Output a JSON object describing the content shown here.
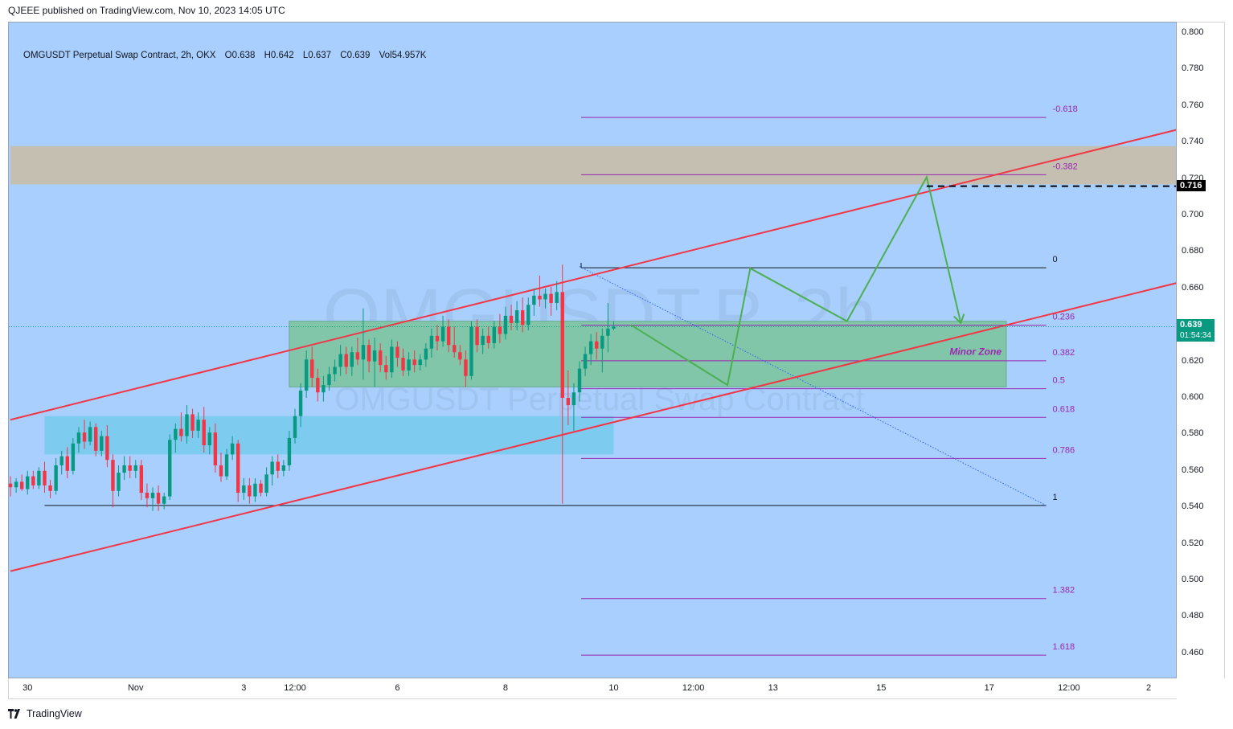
{
  "publish_line": "QJEEE published on TradingView.com, Nov 10, 2023 14:05 UTC",
  "legend": {
    "symbol": "OMGUSDT Perpetual Swap Contract, 2h, OKX",
    "open": "O0.638",
    "high": "H0.642",
    "low": "L0.637",
    "close": "C0.639",
    "volume": "Vol54.957K"
  },
  "watermark": {
    "big": "OMGUSDT.P, 2h",
    "small": "OMGUSDT Perpetual Swap Contract"
  },
  "footer": {
    "brand": "TradingView"
  },
  "colors": {
    "background": "#a8cffd",
    "channel_line": "#f23645",
    "projection_path": "#4caf50",
    "fib_line": "#9c27b0",
    "resistance_zone": "#c4bfb0",
    "support_zone_green": "#81c6a9",
    "support_zone_blue": "#7ecbf0",
    "up_candle": "#089981",
    "down_candle": "#f23645"
  },
  "chart_data": {
    "type": "candlestick",
    "symbol": "OMGUSDT Perpetual Swap Contract",
    "interval": "2h",
    "exchange": "OKX",
    "ylim": [
      0.452,
      0.806
    ],
    "y_ticks": [
      "0.800",
      "0.780",
      "0.760",
      "0.740",
      "0.720",
      "0.700",
      "0.680",
      "0.660",
      "0.640",
      "0.620",
      "0.600",
      "0.580",
      "0.560",
      "0.540",
      "0.520",
      "0.500",
      "0.480",
      "0.460"
    ],
    "x_ticks": [
      {
        "label": "30",
        "bar": 3
      },
      {
        "label": "Nov",
        "bar": 22
      },
      {
        "label": "3",
        "bar": 41
      },
      {
        "label": "12:00",
        "bar": 50
      },
      {
        "label": "6",
        "bar": 68
      },
      {
        "label": "8",
        "bar": 87
      },
      {
        "label": "10",
        "bar": 106
      },
      {
        "label": "12:00",
        "bar": 120
      },
      {
        "label": "13",
        "bar": 134
      },
      {
        "label": "15",
        "bar": 153
      },
      {
        "label": "17",
        "bar": 172
      },
      {
        "label": "12:00",
        "bar": 186
      },
      {
        "label": "2",
        "bar": 200
      }
    ],
    "current_price": {
      "value": 0.639,
      "label": "0.639",
      "countdown": "01:54:34"
    },
    "target_price": {
      "value": 0.716,
      "label": "0.716"
    },
    "candles": [
      [
        0.553,
        0.557,
        0.546,
        0.551
      ],
      [
        0.551,
        0.556,
        0.548,
        0.554
      ],
      [
        0.554,
        0.558,
        0.549,
        0.55
      ],
      [
        0.55,
        0.56,
        0.547,
        0.557
      ],
      [
        0.557,
        0.56,
        0.55,
        0.552
      ],
      [
        0.552,
        0.562,
        0.55,
        0.56
      ],
      [
        0.56,
        0.565,
        0.548,
        0.552
      ],
      [
        0.552,
        0.555,
        0.545,
        0.549
      ],
      [
        0.549,
        0.567,
        0.547,
        0.563
      ],
      [
        0.563,
        0.571,
        0.558,
        0.568
      ],
      [
        0.568,
        0.573,
        0.556,
        0.56
      ],
      [
        0.56,
        0.578,
        0.558,
        0.575
      ],
      [
        0.575,
        0.584,
        0.57,
        0.581
      ],
      [
        0.581,
        0.588,
        0.572,
        0.576
      ],
      [
        0.576,
        0.587,
        0.574,
        0.584
      ],
      [
        0.584,
        0.586,
        0.568,
        0.571
      ],
      [
        0.571,
        0.582,
        0.568,
        0.579
      ],
      [
        0.579,
        0.585,
        0.562,
        0.566
      ],
      [
        0.566,
        0.569,
        0.54,
        0.549
      ],
      [
        0.549,
        0.563,
        0.546,
        0.559
      ],
      [
        0.559,
        0.568,
        0.555,
        0.563
      ],
      [
        0.563,
        0.568,
        0.556,
        0.56
      ],
      [
        0.56,
        0.566,
        0.556,
        0.563
      ],
      [
        0.563,
        0.566,
        0.544,
        0.548
      ],
      [
        0.548,
        0.553,
        0.54,
        0.545
      ],
      [
        0.545,
        0.551,
        0.538,
        0.548
      ],
      [
        0.548,
        0.552,
        0.538,
        0.542
      ],
      [
        0.542,
        0.548,
        0.539,
        0.546
      ],
      [
        0.546,
        0.58,
        0.544,
        0.577
      ],
      [
        0.577,
        0.586,
        0.57,
        0.583
      ],
      [
        0.583,
        0.592,
        0.576,
        0.579
      ],
      [
        0.579,
        0.596,
        0.575,
        0.591
      ],
      [
        0.591,
        0.594,
        0.578,
        0.582
      ],
      [
        0.582,
        0.592,
        0.578,
        0.588
      ],
      [
        0.588,
        0.595,
        0.57,
        0.574
      ],
      [
        0.574,
        0.584,
        0.569,
        0.581
      ],
      [
        0.581,
        0.586,
        0.559,
        0.563
      ],
      [
        0.563,
        0.57,
        0.554,
        0.557
      ],
      [
        0.557,
        0.572,
        0.555,
        0.569
      ],
      [
        0.569,
        0.579,
        0.566,
        0.575
      ],
      [
        0.575,
        0.577,
        0.543,
        0.548
      ],
      [
        0.548,
        0.556,
        0.544,
        0.552
      ],
      [
        0.552,
        0.556,
        0.542,
        0.546
      ],
      [
        0.546,
        0.556,
        0.543,
        0.553
      ],
      [
        0.553,
        0.555,
        0.546,
        0.548
      ],
      [
        0.548,
        0.562,
        0.546,
        0.558
      ],
      [
        0.558,
        0.568,
        0.552,
        0.565
      ],
      [
        0.565,
        0.569,
        0.556,
        0.56
      ],
      [
        0.56,
        0.566,
        0.557,
        0.563
      ],
      [
        0.563,
        0.582,
        0.56,
        0.578
      ],
      [
        0.578,
        0.594,
        0.575,
        0.59
      ],
      [
        0.59,
        0.608,
        0.584,
        0.604
      ],
      [
        0.604,
        0.626,
        0.6,
        0.621
      ],
      [
        0.621,
        0.628,
        0.606,
        0.611
      ],
      [
        0.611,
        0.616,
        0.598,
        0.603
      ],
      [
        0.603,
        0.612,
        0.598,
        0.607
      ],
      [
        0.607,
        0.617,
        0.604,
        0.613
      ],
      [
        0.613,
        0.621,
        0.609,
        0.617
      ],
      [
        0.617,
        0.629,
        0.612,
        0.624
      ],
      [
        0.624,
        0.628,
        0.613,
        0.617
      ],
      [
        0.617,
        0.628,
        0.612,
        0.625
      ],
      [
        0.625,
        0.633,
        0.618,
        0.621
      ],
      [
        0.621,
        0.649,
        0.61,
        0.629
      ],
      [
        0.629,
        0.632,
        0.614,
        0.62
      ],
      [
        0.62,
        0.633,
        0.606,
        0.626
      ],
      [
        0.626,
        0.63,
        0.614,
        0.618
      ],
      [
        0.618,
        0.623,
        0.61,
        0.614
      ],
      [
        0.614,
        0.632,
        0.611,
        0.628
      ],
      [
        0.628,
        0.631,
        0.617,
        0.622
      ],
      [
        0.622,
        0.627,
        0.612,
        0.615
      ],
      [
        0.615,
        0.625,
        0.612,
        0.621
      ],
      [
        0.621,
        0.626,
        0.614,
        0.618
      ],
      [
        0.618,
        0.624,
        0.615,
        0.621
      ],
      [
        0.621,
        0.63,
        0.617,
        0.627
      ],
      [
        0.627,
        0.638,
        0.622,
        0.634
      ],
      [
        0.634,
        0.64,
        0.626,
        0.631
      ],
      [
        0.631,
        0.645,
        0.628,
        0.639
      ],
      [
        0.639,
        0.643,
        0.625,
        0.629
      ],
      [
        0.629,
        0.639,
        0.622,
        0.625
      ],
      [
        0.625,
        0.629,
        0.618,
        0.621
      ],
      [
        0.621,
        0.626,
        0.606,
        0.612
      ],
      [
        0.612,
        0.642,
        0.61,
        0.639
      ],
      [
        0.639,
        0.643,
        0.625,
        0.629
      ],
      [
        0.629,
        0.638,
        0.624,
        0.634
      ],
      [
        0.634,
        0.639,
        0.627,
        0.63
      ],
      [
        0.63,
        0.642,
        0.627,
        0.639
      ],
      [
        0.639,
        0.646,
        0.63,
        0.635
      ],
      [
        0.635,
        0.65,
        0.632,
        0.645
      ],
      [
        0.645,
        0.651,
        0.637,
        0.641
      ],
      [
        0.641,
        0.653,
        0.637,
        0.648
      ],
      [
        0.648,
        0.655,
        0.636,
        0.64
      ],
      [
        0.64,
        0.655,
        0.637,
        0.651
      ],
      [
        0.651,
        0.66,
        0.645,
        0.656
      ],
      [
        0.656,
        0.667,
        0.65,
        0.654
      ],
      [
        0.654,
        0.66,
        0.649,
        0.657
      ],
      [
        0.657,
        0.661,
        0.645,
        0.652
      ],
      [
        0.652,
        0.664,
        0.648,
        0.658
      ],
      [
        0.658,
        0.673,
        0.542,
        0.6
      ],
      [
        0.6,
        0.615,
        0.585,
        0.596
      ],
      [
        0.596,
        0.608,
        0.582,
        0.603
      ],
      [
        0.603,
        0.62,
        0.598,
        0.616
      ],
      [
        0.616,
        0.628,
        0.612,
        0.624
      ],
      [
        0.624,
        0.635,
        0.618,
        0.631
      ],
      [
        0.631,
        0.636,
        0.621,
        0.627
      ],
      [
        0.627,
        0.638,
        0.614,
        0.634
      ],
      [
        0.634,
        0.652,
        0.625,
        0.638
      ],
      [
        0.638,
        0.642,
        0.637,
        0.639
      ]
    ],
    "fib_levels": [
      {
        "ratio": "-0.618",
        "value": 0.7537
      },
      {
        "ratio": "-0.382",
        "value": 0.7223
      },
      {
        "ratio": "0",
        "value": 0.6713
      },
      {
        "ratio": "0.236",
        "value": 0.6398
      },
      {
        "ratio": "0.382",
        "value": 0.6203
      },
      {
        "ratio": "0.5",
        "value": 0.605
      },
      {
        "ratio": "0.618",
        "value": 0.5893
      },
      {
        "ratio": "0.786",
        "value": 0.5668
      },
      {
        "ratio": "1",
        "value": 0.541
      },
      {
        "ratio": "1.382",
        "value": 0.49
      },
      {
        "ratio": "1.618",
        "value": 0.459
      }
    ],
    "zones": [
      {
        "name": "resistance",
        "from_bar": 0,
        "to_bar": 205,
        "top": 0.738,
        "bottom": 0.717
      },
      {
        "name": "Minor Zone",
        "label": "Minor Zone",
        "from_bar": 49,
        "to_bar": 175,
        "top": 0.642,
        "bottom": 0.606
      },
      {
        "name": "support",
        "from_bar": 6,
        "to_bar": 106,
        "top": 0.59,
        "bottom": 0.569
      }
    ],
    "channel": {
      "upper": [
        {
          "bar": 0,
          "price": 0.588
        },
        {
          "bar": 205,
          "price": 0.747
        }
      ],
      "lower": [
        {
          "bar": 0,
          "price": 0.505
        },
        {
          "bar": 205,
          "price": 0.663
        }
      ]
    },
    "diagonal": [
      {
        "bar": 100,
        "price": 0.672
      },
      {
        "bar": 182,
        "price": 0.541
      }
    ],
    "projection_path": [
      {
        "bar": 109,
        "price": 0.64
      },
      {
        "bar": 126,
        "price": 0.607
      },
      {
        "bar": 130,
        "price": 0.671
      },
      {
        "bar": 147,
        "price": 0.642
      },
      {
        "bar": 161,
        "price": 0.721
      },
      {
        "bar": 167,
        "price": 0.641
      }
    ],
    "target_line": {
      "from_bar": 161,
      "price": 0.716
    },
    "recent_high_line": {
      "from_bar": 100,
      "to_bar": 182,
      "price": 0.6713
    },
    "recent_low_line": {
      "from_bar": 6,
      "to_bar": 182,
      "price": 0.541
    }
  }
}
